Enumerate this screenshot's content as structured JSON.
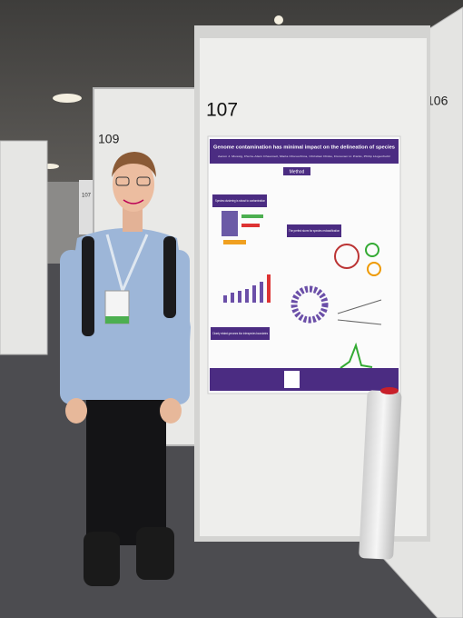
{
  "panels": [
    {
      "number": "109"
    },
    {
      "number": "107"
    },
    {
      "number": "106"
    },
    {
      "number": "107"
    }
  ],
  "poster": {
    "title": "Genome contamination has minimal impact on the delineation of species",
    "authors": "Aaron J. Mussig, Pierre-Alain Chaumeil, Maria Chuvochina, Christian Rinke, Donovan H. Parks, Philip Hugenholtz",
    "sections": [
      "Method",
      "Species clustering is robust to contamination",
      "The perfect storm for species reclassification",
      "Closely related genomes blur interspecies boundaries"
    ]
  }
}
